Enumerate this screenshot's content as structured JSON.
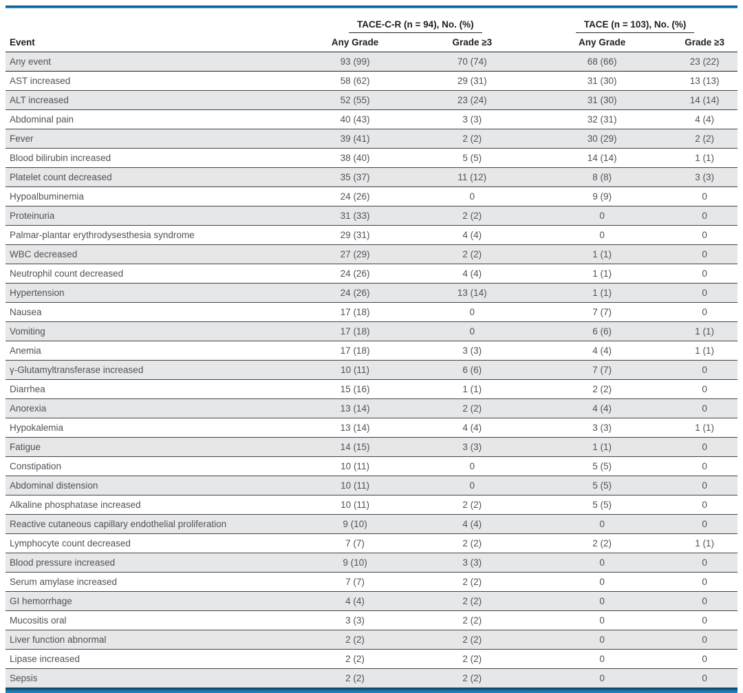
{
  "colors": {
    "top_bar_blue": "#1377b4",
    "bottom_bar_blue": "#1377b4",
    "stripe_gray": "#e6e7e8",
    "row_line": "#424242",
    "body_text": "#515257",
    "header_text": "#1d1d1f"
  },
  "table": {
    "groups": [
      {
        "label": "TACE-C-R (n = 94), No. (%)"
      },
      {
        "label": "TACE (n = 103), No. (%)"
      }
    ],
    "columns": {
      "event": "Event",
      "sub": [
        "Any Grade",
        "Grade ≥3",
        "Any Grade",
        "Grade ≥3"
      ]
    },
    "rows": [
      {
        "event": "Any event",
        "values": [
          "93 (99)",
          "70 (74)",
          "68 (66)",
          "23 (22)"
        ]
      },
      {
        "event": "AST increased",
        "values": [
          "58 (62)",
          "29 (31)",
          "31 (30)",
          "13 (13)"
        ]
      },
      {
        "event": "ALT increased",
        "values": [
          "52 (55)",
          "23 (24)",
          "31 (30)",
          "14 (14)"
        ]
      },
      {
        "event": "Abdominal pain",
        "values": [
          "40 (43)",
          "3 (3)",
          "32 (31)",
          "4 (4)"
        ]
      },
      {
        "event": "Fever",
        "values": [
          "39 (41)",
          "2 (2)",
          "30 (29)",
          "2 (2)"
        ]
      },
      {
        "event": "Blood bilirubin increased",
        "values": [
          "38 (40)",
          "5 (5)",
          "14 (14)",
          "1 (1)"
        ]
      },
      {
        "event": "Platelet count decreased",
        "values": [
          "35 (37)",
          "11 (12)",
          "8 (8)",
          "3 (3)"
        ]
      },
      {
        "event": "Hypoalbuminemia",
        "values": [
          "24 (26)",
          "0",
          "9 (9)",
          "0"
        ]
      },
      {
        "event": "Proteinuria",
        "values": [
          "31 (33)",
          "2 (2)",
          "0",
          "0"
        ]
      },
      {
        "event": "Palmar-plantar erythrodysesthesia syndrome",
        "values": [
          "29 (31)",
          "4 (4)",
          "0",
          "0"
        ]
      },
      {
        "event": "WBC decreased",
        "values": [
          "27 (29)",
          "2 (2)",
          "1 (1)",
          "0"
        ]
      },
      {
        "event": "Neutrophil count decreased",
        "values": [
          "24 (26)",
          "4 (4)",
          "1 (1)",
          "0"
        ]
      },
      {
        "event": "Hypertension",
        "values": [
          "24 (26)",
          "13 (14)",
          "1 (1)",
          "0"
        ]
      },
      {
        "event": "Nausea",
        "values": [
          "17 (18)",
          "0",
          "7 (7)",
          "0"
        ]
      },
      {
        "event": "Vomiting",
        "values": [
          "17 (18)",
          "0",
          "6 (6)",
          "1 (1)"
        ]
      },
      {
        "event": "Anemia",
        "values": [
          "17 (18)",
          "3 (3)",
          "4 (4)",
          "1 (1)"
        ]
      },
      {
        "event": "γ-Glutamyltransferase increased",
        "values": [
          "10 (11)",
          "6 (6)",
          "7 (7)",
          "0"
        ]
      },
      {
        "event": "Diarrhea",
        "values": [
          "15 (16)",
          "1 (1)",
          "2 (2)",
          "0"
        ]
      },
      {
        "event": "Anorexia",
        "values": [
          "13 (14)",
          "2 (2)",
          "4 (4)",
          "0"
        ]
      },
      {
        "event": "Hypokalemia",
        "values": [
          "13 (14)",
          "4 (4)",
          "3 (3)",
          "1 (1)"
        ]
      },
      {
        "event": "Fatigue",
        "values": [
          "14 (15)",
          "3 (3)",
          "1 (1)",
          "0"
        ]
      },
      {
        "event": "Constipation",
        "values": [
          "10 (11)",
          "0",
          "5 (5)",
          "0"
        ]
      },
      {
        "event": "Abdominal distension",
        "values": [
          "10 (11)",
          "0",
          "5 (5)",
          "0"
        ]
      },
      {
        "event": "Alkaline phosphatase increased",
        "values": [
          "10 (11)",
          "2 (2)",
          "5 (5)",
          "0"
        ]
      },
      {
        "event": "Reactive cutaneous capillary endothelial proliferation",
        "values": [
          "9 (10)",
          "4 (4)",
          "0",
          "0"
        ]
      },
      {
        "event": "Lymphocyte count decreased",
        "values": [
          "7 (7)",
          "2 (2)",
          "2 (2)",
          "1 (1)"
        ]
      },
      {
        "event": "Blood pressure increased",
        "values": [
          "9 (10)",
          "3 (3)",
          "0",
          "0"
        ]
      },
      {
        "event": "Serum amylase increased",
        "values": [
          "7 (7)",
          "2 (2)",
          "0",
          "0"
        ]
      },
      {
        "event": "GI hemorrhage",
        "values": [
          "4 (4)",
          "2 (2)",
          "0",
          "0"
        ]
      },
      {
        "event": "Mucositis oral",
        "values": [
          "3 (3)",
          "2 (2)",
          "0",
          "0"
        ]
      },
      {
        "event": "Liver function abnormal",
        "values": [
          "2 (2)",
          "2 (2)",
          "0",
          "0"
        ]
      },
      {
        "event": "Lipase increased",
        "values": [
          "2 (2)",
          "2 (2)",
          "0",
          "0"
        ]
      },
      {
        "event": "Sepsis",
        "values": [
          "2 (2)",
          "2 (2)",
          "0",
          "0"
        ]
      }
    ]
  }
}
